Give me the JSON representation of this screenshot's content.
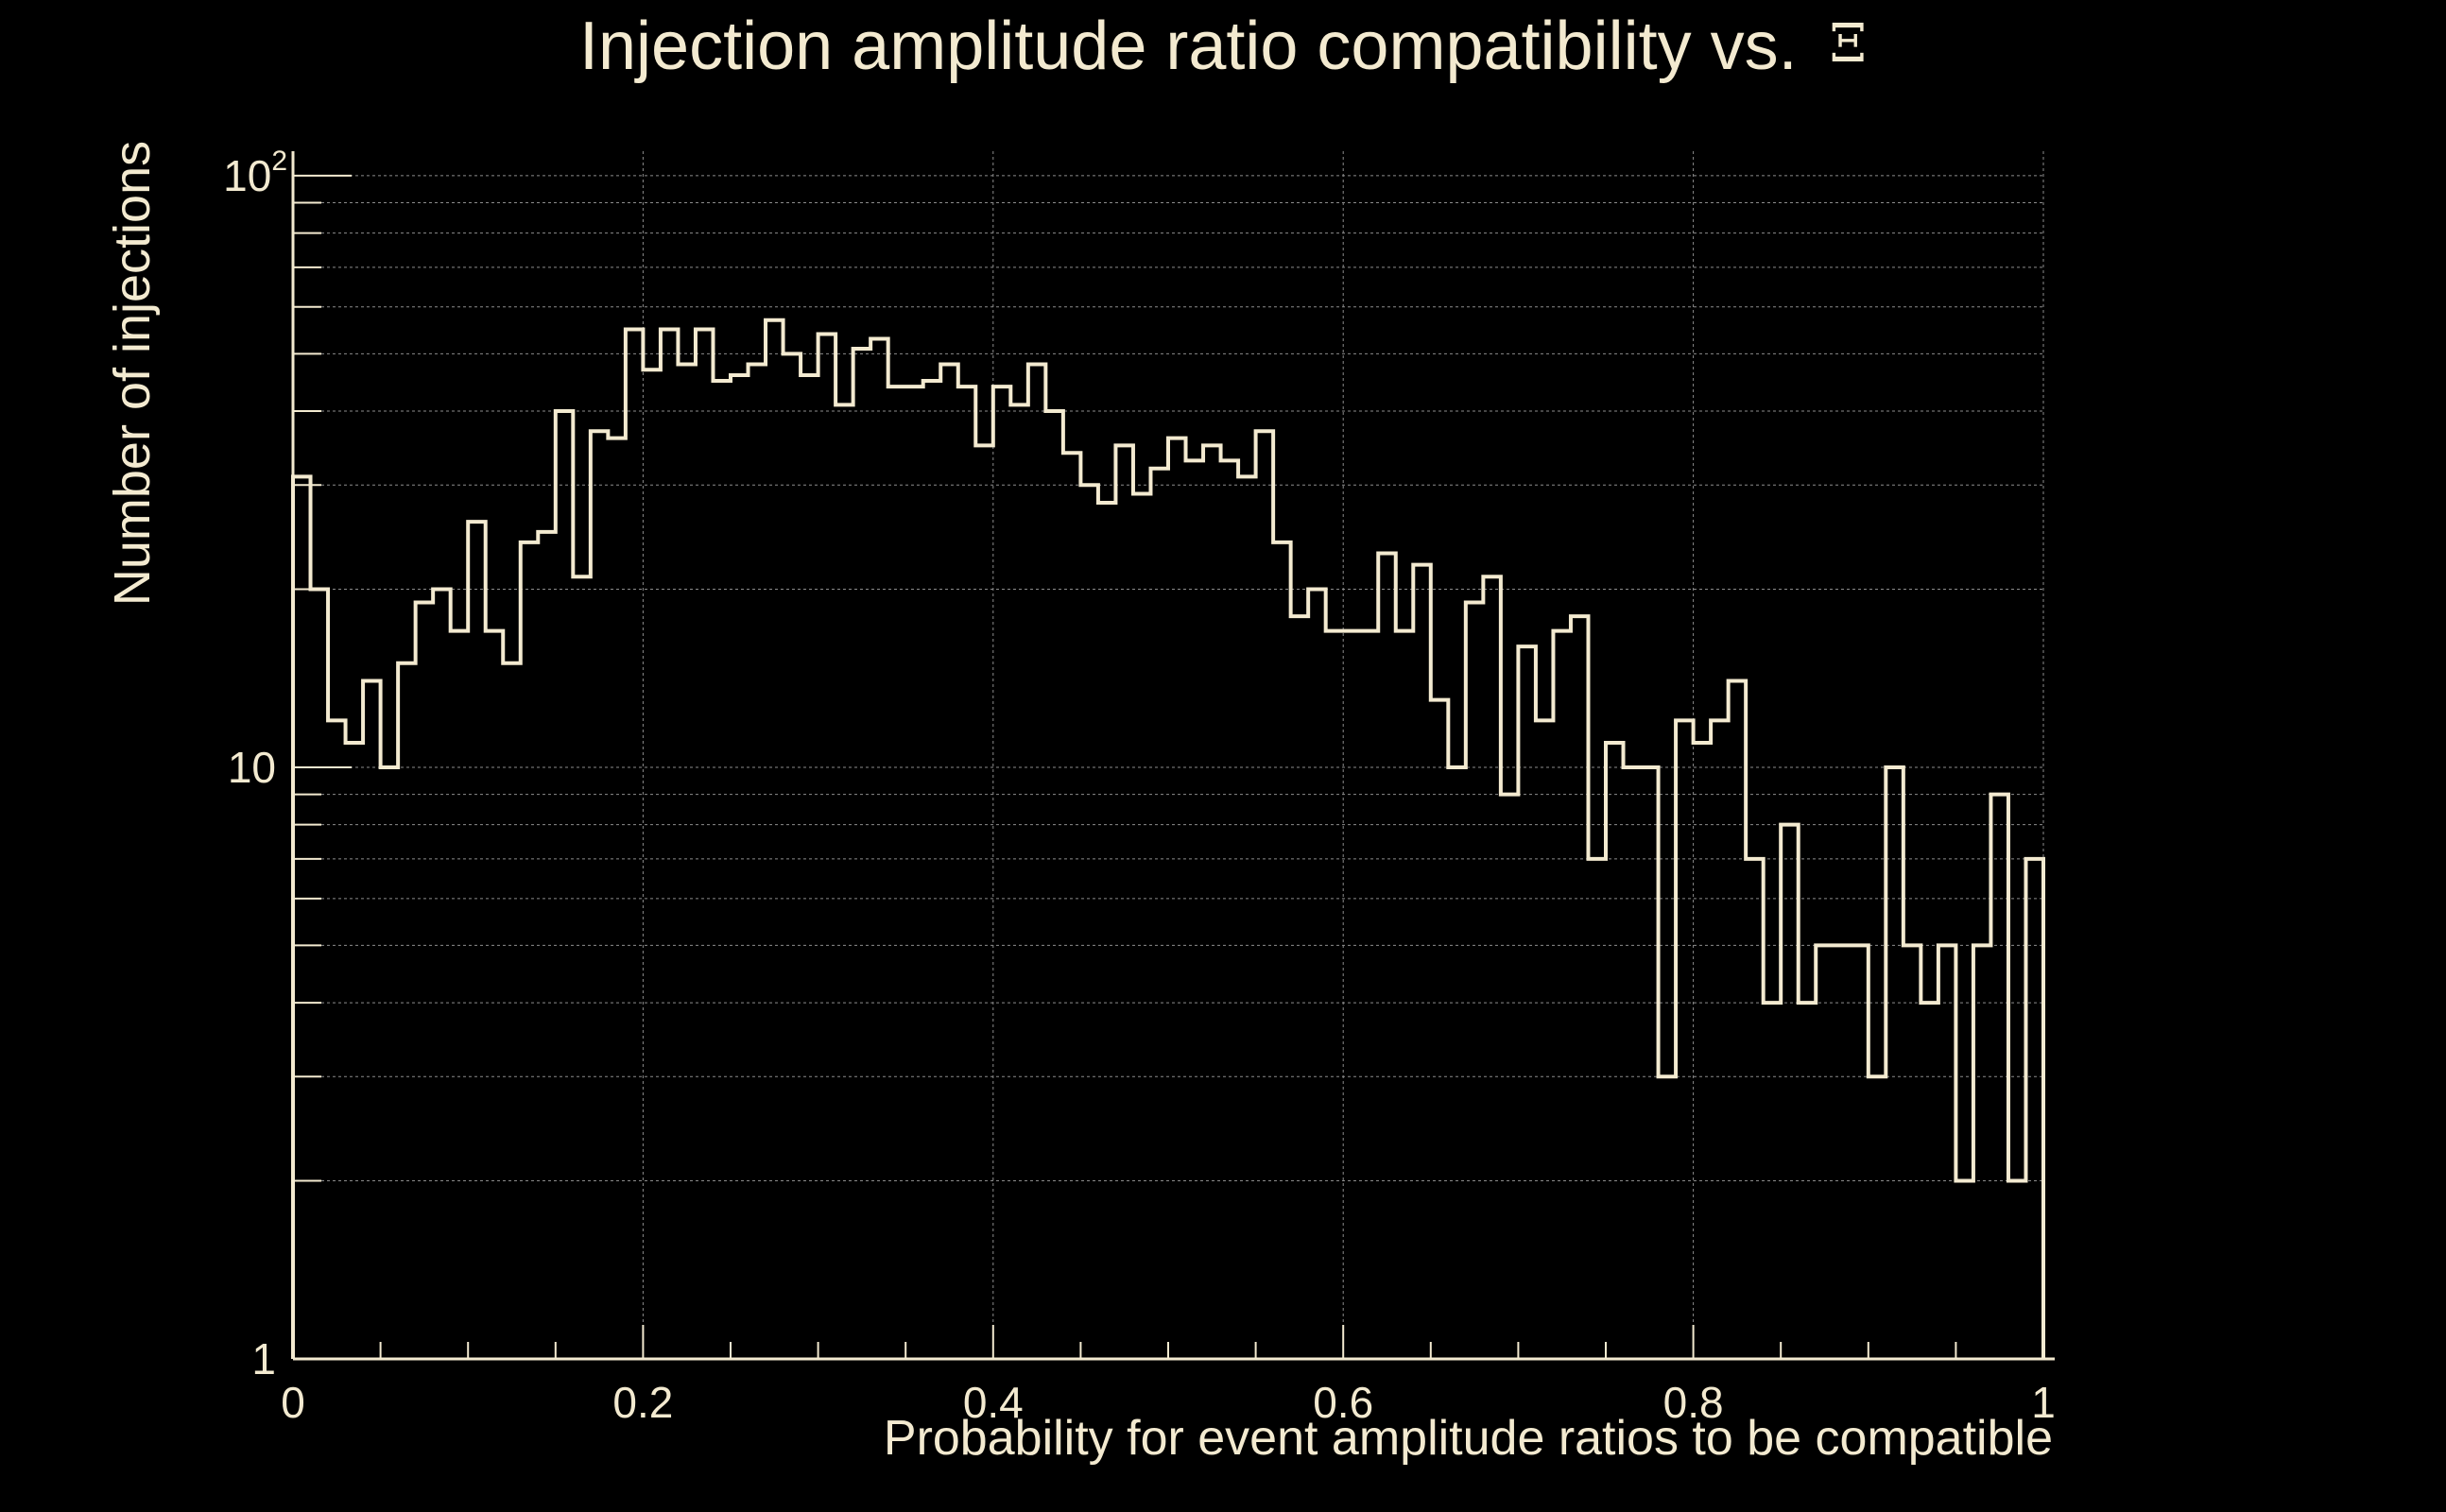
{
  "page": {
    "background": "#000000",
    "foreground": "#f3ead0"
  },
  "chart_data": {
    "type": "bar",
    "style": "step-histogram",
    "title": "Injection amplitude ratio compatibility vs.",
    "title_symbol": "Ξ",
    "xlabel": "Probability for event amplitude ratios to be compatible",
    "ylabel": "Number of injections",
    "xlim": [
      0,
      1
    ],
    "ylim": [
      1,
      110
    ],
    "yscale": "log",
    "grid": true,
    "line_color": "#f3ead0",
    "grid_color": "#8c8c8c",
    "x_ticks": [
      {
        "value": 0,
        "label": "0"
      },
      {
        "value": 0.2,
        "label": "0.2"
      },
      {
        "value": 0.4,
        "label": "0.4"
      },
      {
        "value": 0.6,
        "label": "0.6"
      },
      {
        "value": 0.8,
        "label": "0.8"
      },
      {
        "value": 1,
        "label": "1"
      }
    ],
    "y_ticks": [
      {
        "value": 1,
        "label": "1"
      },
      {
        "value": 10,
        "label": "10"
      },
      {
        "value": 100,
        "label": "10",
        "exponent": "2"
      }
    ],
    "bin_width": 0.01,
    "bin_starts": [
      0,
      0.01,
      0.02,
      0.03,
      0.04,
      0.05,
      0.06,
      0.07,
      0.08,
      0.09,
      0.1,
      0.11,
      0.12,
      0.13,
      0.14,
      0.15,
      0.16,
      0.17,
      0.18,
      0.19,
      0.2,
      0.21,
      0.22,
      0.23,
      0.24,
      0.25,
      0.26,
      0.27,
      0.28,
      0.29,
      0.3,
      0.31,
      0.32,
      0.33,
      0.34,
      0.35,
      0.36,
      0.37,
      0.38,
      0.39,
      0.4,
      0.41,
      0.42,
      0.43,
      0.44,
      0.45,
      0.46,
      0.47,
      0.48,
      0.49,
      0.5,
      0.51,
      0.52,
      0.53,
      0.54,
      0.55,
      0.56,
      0.57,
      0.58,
      0.59,
      0.6,
      0.61,
      0.62,
      0.63,
      0.64,
      0.65,
      0.66,
      0.67,
      0.68,
      0.69,
      0.7,
      0.71,
      0.72,
      0.73,
      0.74,
      0.75,
      0.76,
      0.77,
      0.78,
      0.79,
      0.8,
      0.81,
      0.82,
      0.83,
      0.84,
      0.85,
      0.86,
      0.87,
      0.88,
      0.89,
      0.9,
      0.91,
      0.92,
      0.93,
      0.94,
      0.95,
      0.96,
      0.97,
      0.98,
      0.99
    ],
    "values": [
      31,
      20,
      12,
      11,
      14,
      10,
      15,
      19,
      20,
      17,
      26,
      17,
      15,
      24,
      25,
      40,
      21,
      37,
      36,
      55,
      47,
      55,
      48,
      55,
      45,
      46,
      48,
      57,
      50,
      46,
      54,
      41,
      51,
      53,
      44,
      44,
      45,
      48,
      44,
      35,
      44,
      41,
      48,
      40,
      34,
      30,
      28,
      35,
      29,
      32,
      36,
      33,
      35,
      33,
      31,
      37,
      24,
      18,
      20,
      17,
      17,
      17,
      23,
      17,
      22,
      13,
      10,
      19,
      21,
      9,
      16,
      12,
      17,
      18,
      7,
      11,
      10,
      10,
      3,
      12,
      11,
      12,
      14,
      7,
      4,
      8,
      4,
      5,
      5,
      5,
      3,
      10,
      5,
      4,
      5,
      2,
      5,
      9,
      2,
      7
    ]
  }
}
